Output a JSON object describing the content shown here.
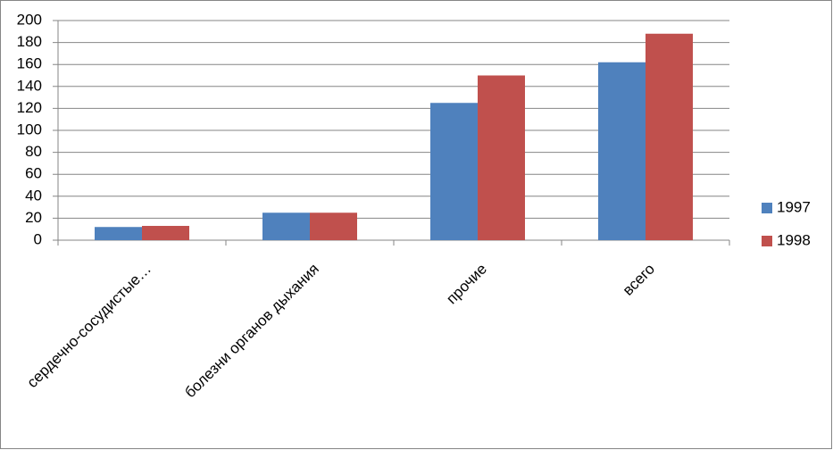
{
  "chart_data": {
    "type": "bar",
    "categories": [
      "сердечно-сосудистые…",
      "болезни органов дыхания",
      "прочие",
      "всего"
    ],
    "series": [
      {
        "name": "1997",
        "color": "#4f81bd",
        "values": [
          12,
          25,
          125,
          162
        ]
      },
      {
        "name": "1998",
        "color": "#c0504d",
        "values": [
          13,
          25,
          150,
          188
        ]
      }
    ],
    "ylim": [
      0,
      200
    ],
    "yticks": [
      0,
      20,
      40,
      60,
      80,
      100,
      120,
      140,
      160,
      180,
      200
    ],
    "grid": true,
    "legend": "right"
  }
}
